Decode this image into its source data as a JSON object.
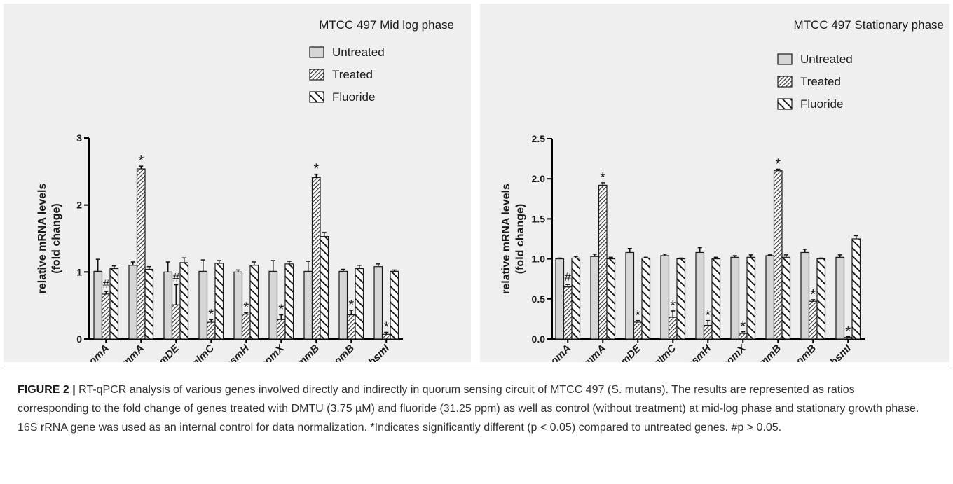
{
  "chart_data": [
    {
      "type": "bar",
      "title": "MTCC 497 Mid log phase",
      "ylabel": "relative mRNA levels\n(fold change)",
      "ylim": [
        0,
        3
      ],
      "yticks": [
        "0",
        "1",
        "2",
        "3"
      ],
      "categories": [
        "comA",
        "immA",
        "comDE",
        "nlmC",
        "bsmH",
        "comX",
        "immB",
        "comB",
        "bsmI"
      ],
      "series": [
        {
          "name": "Untreated",
          "values": [
            1.01,
            1.1,
            1.0,
            1.01,
            1.0,
            1.01,
            1.01,
            1.01,
            1.08
          ],
          "errors": [
            0.18,
            0.05,
            0.15,
            0.17,
            0.03,
            0.16,
            0.15,
            0.03,
            0.04
          ]
        },
        {
          "name": "Treated",
          "values": [
            0.67,
            2.54,
            0.51,
            0.25,
            0.37,
            0.29,
            2.41,
            0.36,
            0.07
          ],
          "errors": [
            0.04,
            0.04,
            0.3,
            0.04,
            0.02,
            0.07,
            0.05,
            0.07,
            0.03
          ]
        },
        {
          "name": "Fluoride",
          "values": [
            1.05,
            1.04,
            1.14,
            1.13,
            1.1,
            1.12,
            1.53,
            1.05,
            1.01
          ],
          "errors": [
            0.04,
            0.04,
            0.07,
            0.04,
            0.05,
            0.04,
            0.06,
            0.05,
            0.02
          ]
        }
      ],
      "marks": [
        {
          "category": "comA",
          "symbol": "#"
        },
        {
          "category": "immA",
          "symbol": "*"
        },
        {
          "category": "comDE",
          "symbol": "#"
        },
        {
          "category": "nlmC",
          "symbol": "*"
        },
        {
          "category": "bsmH",
          "symbol": "*"
        },
        {
          "category": "comX",
          "symbol": "*"
        },
        {
          "category": "immB",
          "symbol": "*"
        },
        {
          "category": "comB",
          "symbol": "*"
        },
        {
          "category": "bsmI",
          "symbol": "*"
        }
      ],
      "legend_position": "top-right"
    },
    {
      "type": "bar",
      "title": "MTCC 497 Stationary phase",
      "ylabel": "relative mRNA levels\n(fold change)",
      "ylim": [
        0,
        2.5
      ],
      "yticks": [
        "0.0",
        "0.5",
        "1.0",
        "1.5",
        "2.0",
        "2.5"
      ],
      "categories": [
        "comA",
        "immA",
        "comDE",
        "nlmC",
        "bsmH",
        "comX",
        "immB",
        "comB",
        "bsmI"
      ],
      "series": [
        {
          "name": "Untreated",
          "values": [
            1.0,
            1.03,
            1.08,
            1.04,
            1.08,
            1.02,
            1.04,
            1.08,
            1.02
          ],
          "errors": [
            0.01,
            0.03,
            0.05,
            0.02,
            0.06,
            0.02,
            0.01,
            0.04,
            0.03
          ]
        },
        {
          "name": "Treated",
          "values": [
            0.65,
            1.92,
            0.21,
            0.27,
            0.17,
            0.07,
            2.1,
            0.47,
            0.02
          ],
          "errors": [
            0.03,
            0.03,
            0.02,
            0.08,
            0.06,
            0.02,
            0.02,
            0.02,
            0.01
          ]
        },
        {
          "name": "Fluoride",
          "values": [
            1.01,
            1.0,
            1.01,
            1.0,
            1.0,
            1.02,
            1.02,
            1.0,
            1.25
          ],
          "errors": [
            0.02,
            0.02,
            0.01,
            0.01,
            0.02,
            0.03,
            0.03,
            0.01,
            0.04
          ]
        }
      ],
      "marks": [
        {
          "category": "comA",
          "symbol": "#"
        },
        {
          "category": "immA",
          "symbol": "*"
        },
        {
          "category": "comDE",
          "symbol": "*"
        },
        {
          "category": "nlmC",
          "symbol": "*"
        },
        {
          "category": "bsmH",
          "symbol": "*"
        },
        {
          "category": "comX",
          "symbol": "*"
        },
        {
          "category": "immB",
          "symbol": "*"
        },
        {
          "category": "comB",
          "symbol": "*"
        },
        {
          "category": "bsmI",
          "symbol": "*"
        }
      ],
      "legend_position": "top-right"
    }
  ],
  "caption": {
    "label": "FIGURE 2",
    "separator": " | ",
    "text": "RT-qPCR analysis of various genes involved directly and indirectly in quorum sensing circuit of MTCC 497 (S. mutans).  The results are represented as ratios corresponding to the fold change of genes treated with DMTU (3.75 µM) and fluoride (31.25 ppm) as well as control (without treatment) at mid-log phase and stationary growth phase. 16S rRNA gene was used as an internal control for data normalization. *Indicates significantly different (p < 0.05) compared to untreated genes. #p > 0.05."
  },
  "colors": {
    "panel_bg": "#efefef",
    "untreated_fill": "#d6d6d6",
    "bar_stroke": "#1a1a1a",
    "caption_text": "#333333"
  }
}
